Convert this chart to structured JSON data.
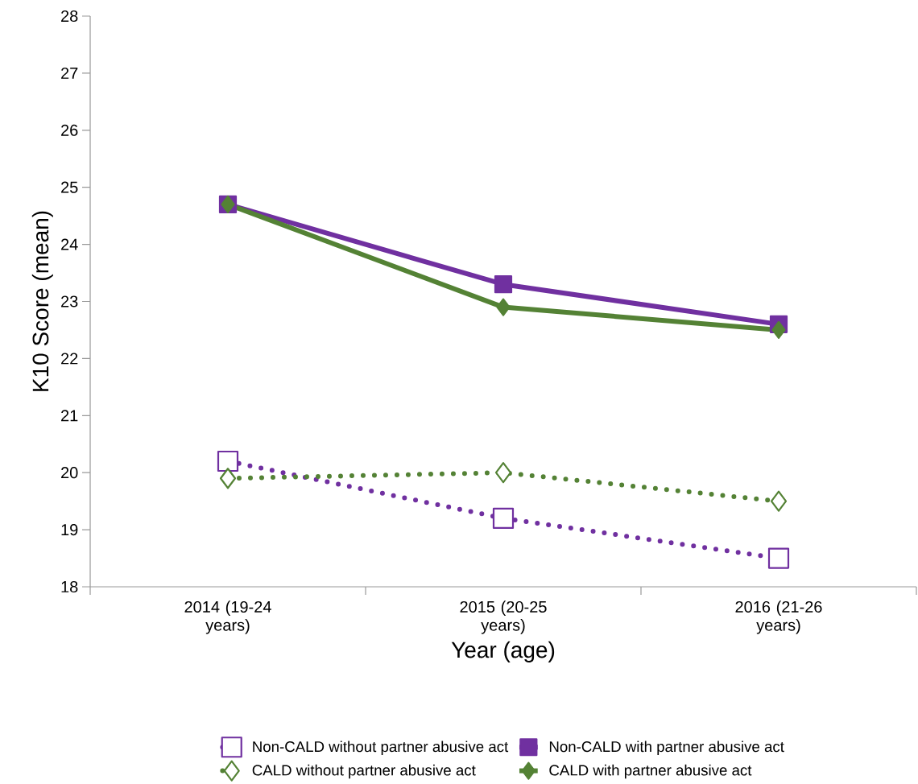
{
  "chart_data": {
    "type": "line",
    "xlabel": "Year (age)",
    "ylabel": "K10 Score (mean)",
    "categories": [
      "2014 (19-24 years)",
      "2015 (20-25 years)",
      "2016 (21-26 years)"
    ],
    "series": [
      {
        "name": "Non-CALD without partner abusive act",
        "color": "#7030a0",
        "values": [
          20.2,
          19.2,
          18.5
        ],
        "marker": "square",
        "line_style": "dotted"
      },
      {
        "name": "Non-CALD with partner abusive act",
        "color": "#7030a0",
        "values": [
          24.7,
          23.3,
          22.6
        ],
        "marker": "square",
        "line_style": "solid"
      },
      {
        "name": "CALD without partner abusive act",
        "color": "#548235",
        "values": [
          19.9,
          20.0,
          19.5
        ],
        "marker": "diamond",
        "line_style": "dotted"
      },
      {
        "name": "CALD with partner abusive act",
        "color": "#548235",
        "values": [
          24.7,
          22.9,
          22.5
        ],
        "marker": "diamond",
        "line_style": "solid"
      }
    ],
    "ylim": [
      18,
      28
    ],
    "yticks": [
      18,
      19,
      20,
      21,
      22,
      23,
      24,
      25,
      26,
      27,
      28
    ],
    "grid": false,
    "legend": "bottom"
  }
}
